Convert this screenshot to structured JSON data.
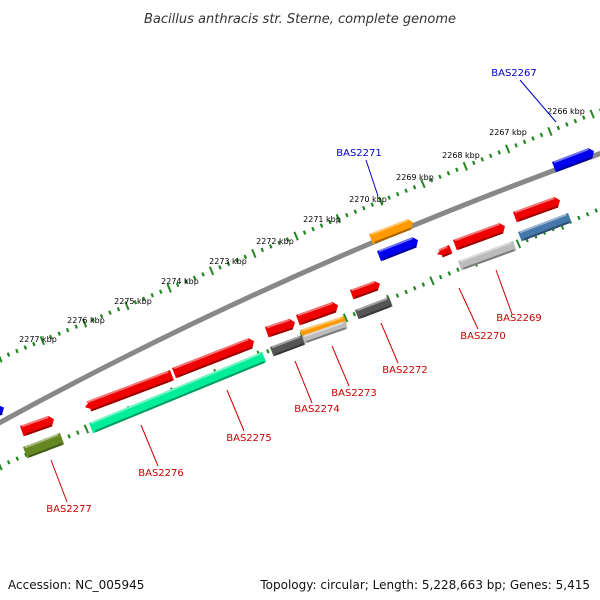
{
  "title": "Bacillus anthracis str. Sterne, complete genome",
  "footer": {
    "accession": "Accession: NC_005945",
    "summary": "Topology: circular; Length: 5,228,663 bp; Genes: 5,415"
  },
  "scale": {
    "unit_labels": [
      "2266 kbp",
      "2267 kbp",
      "2268 kbp",
      "2269 kbp",
      "2270 kbp",
      "2271 kbp",
      "2272 kbp",
      "2273 kbp",
      "2274 kbp",
      "2275 kbp",
      "2276 kbp",
      "2277 kbp"
    ]
  },
  "colors": {
    "red": "#ee0000",
    "blue": "#0000ee",
    "orange": "#ff9900",
    "darkgray": "#555555",
    "lightgray": "#bbbbbb",
    "steelblue": "#4477aa",
    "teal": "#00ee99",
    "olive": "#668822",
    "backbone": "#888888",
    "tick": "#228822",
    "label_red": "#cc0000",
    "label_blue": "#0000cc"
  },
  "gene_labels": [
    {
      "id": "BAS2267",
      "color": "label_blue"
    },
    {
      "id": "BAS2271",
      "color": "label_blue"
    },
    {
      "id": "BAS2269",
      "color": "label_red"
    },
    {
      "id": "BAS2270",
      "color": "label_red"
    },
    {
      "id": "BAS2272",
      "color": "label_red"
    },
    {
      "id": "BAS2273",
      "color": "label_red"
    },
    {
      "id": "BAS2274",
      "color": "label_red"
    },
    {
      "id": "BAS2275",
      "color": "label_red"
    },
    {
      "id": "BAS2276",
      "color": "label_red"
    },
    {
      "id": "BAS2277",
      "color": "label_red"
    }
  ]
}
